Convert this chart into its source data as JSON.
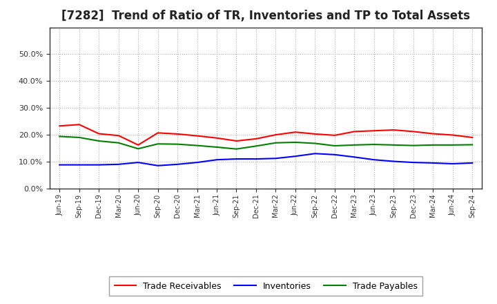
{
  "title": "[7282]  Trend of Ratio of TR, Inventories and TP to Total Assets",
  "labels": [
    "Jun-19",
    "Sep-19",
    "Dec-19",
    "Mar-20",
    "Jun-20",
    "Sep-20",
    "Dec-20",
    "Mar-21",
    "Jun-21",
    "Sep-21",
    "Dec-21",
    "Mar-22",
    "Jun-22",
    "Sep-22",
    "Dec-22",
    "Mar-23",
    "Jun-23",
    "Sep-23",
    "Dec-23",
    "Mar-24",
    "Jun-24",
    "Sep-24"
  ],
  "trade_receivables": [
    0.233,
    0.238,
    0.204,
    0.197,
    0.162,
    0.207,
    0.203,
    0.196,
    0.188,
    0.177,
    0.185,
    0.2,
    0.21,
    0.203,
    0.198,
    0.212,
    0.215,
    0.218,
    0.212,
    0.204,
    0.199,
    0.19
  ],
  "inventories": [
    0.088,
    0.088,
    0.088,
    0.09,
    0.097,
    0.085,
    0.09,
    0.097,
    0.107,
    0.11,
    0.11,
    0.112,
    0.12,
    0.13,
    0.126,
    0.117,
    0.107,
    0.101,
    0.097,
    0.095,
    0.092,
    0.095
  ],
  "trade_payables": [
    0.194,
    0.19,
    0.177,
    0.17,
    0.148,
    0.166,
    0.165,
    0.16,
    0.154,
    0.147,
    0.158,
    0.17,
    0.172,
    0.168,
    0.159,
    0.162,
    0.164,
    0.162,
    0.16,
    0.162,
    0.162,
    0.163
  ],
  "tr_color": "#ff0000",
  "inv_color": "#0000ff",
  "tp_color": "#008000",
  "ylim": [
    0.0,
    0.6
  ],
  "yticks": [
    0.0,
    0.1,
    0.2,
    0.3,
    0.4,
    0.5
  ],
  "background_color": "#ffffff",
  "grid_color": "#aaaaaa",
  "title_fontsize": 12,
  "legend_labels": [
    "Trade Receivables",
    "Inventories",
    "Trade Payables"
  ]
}
